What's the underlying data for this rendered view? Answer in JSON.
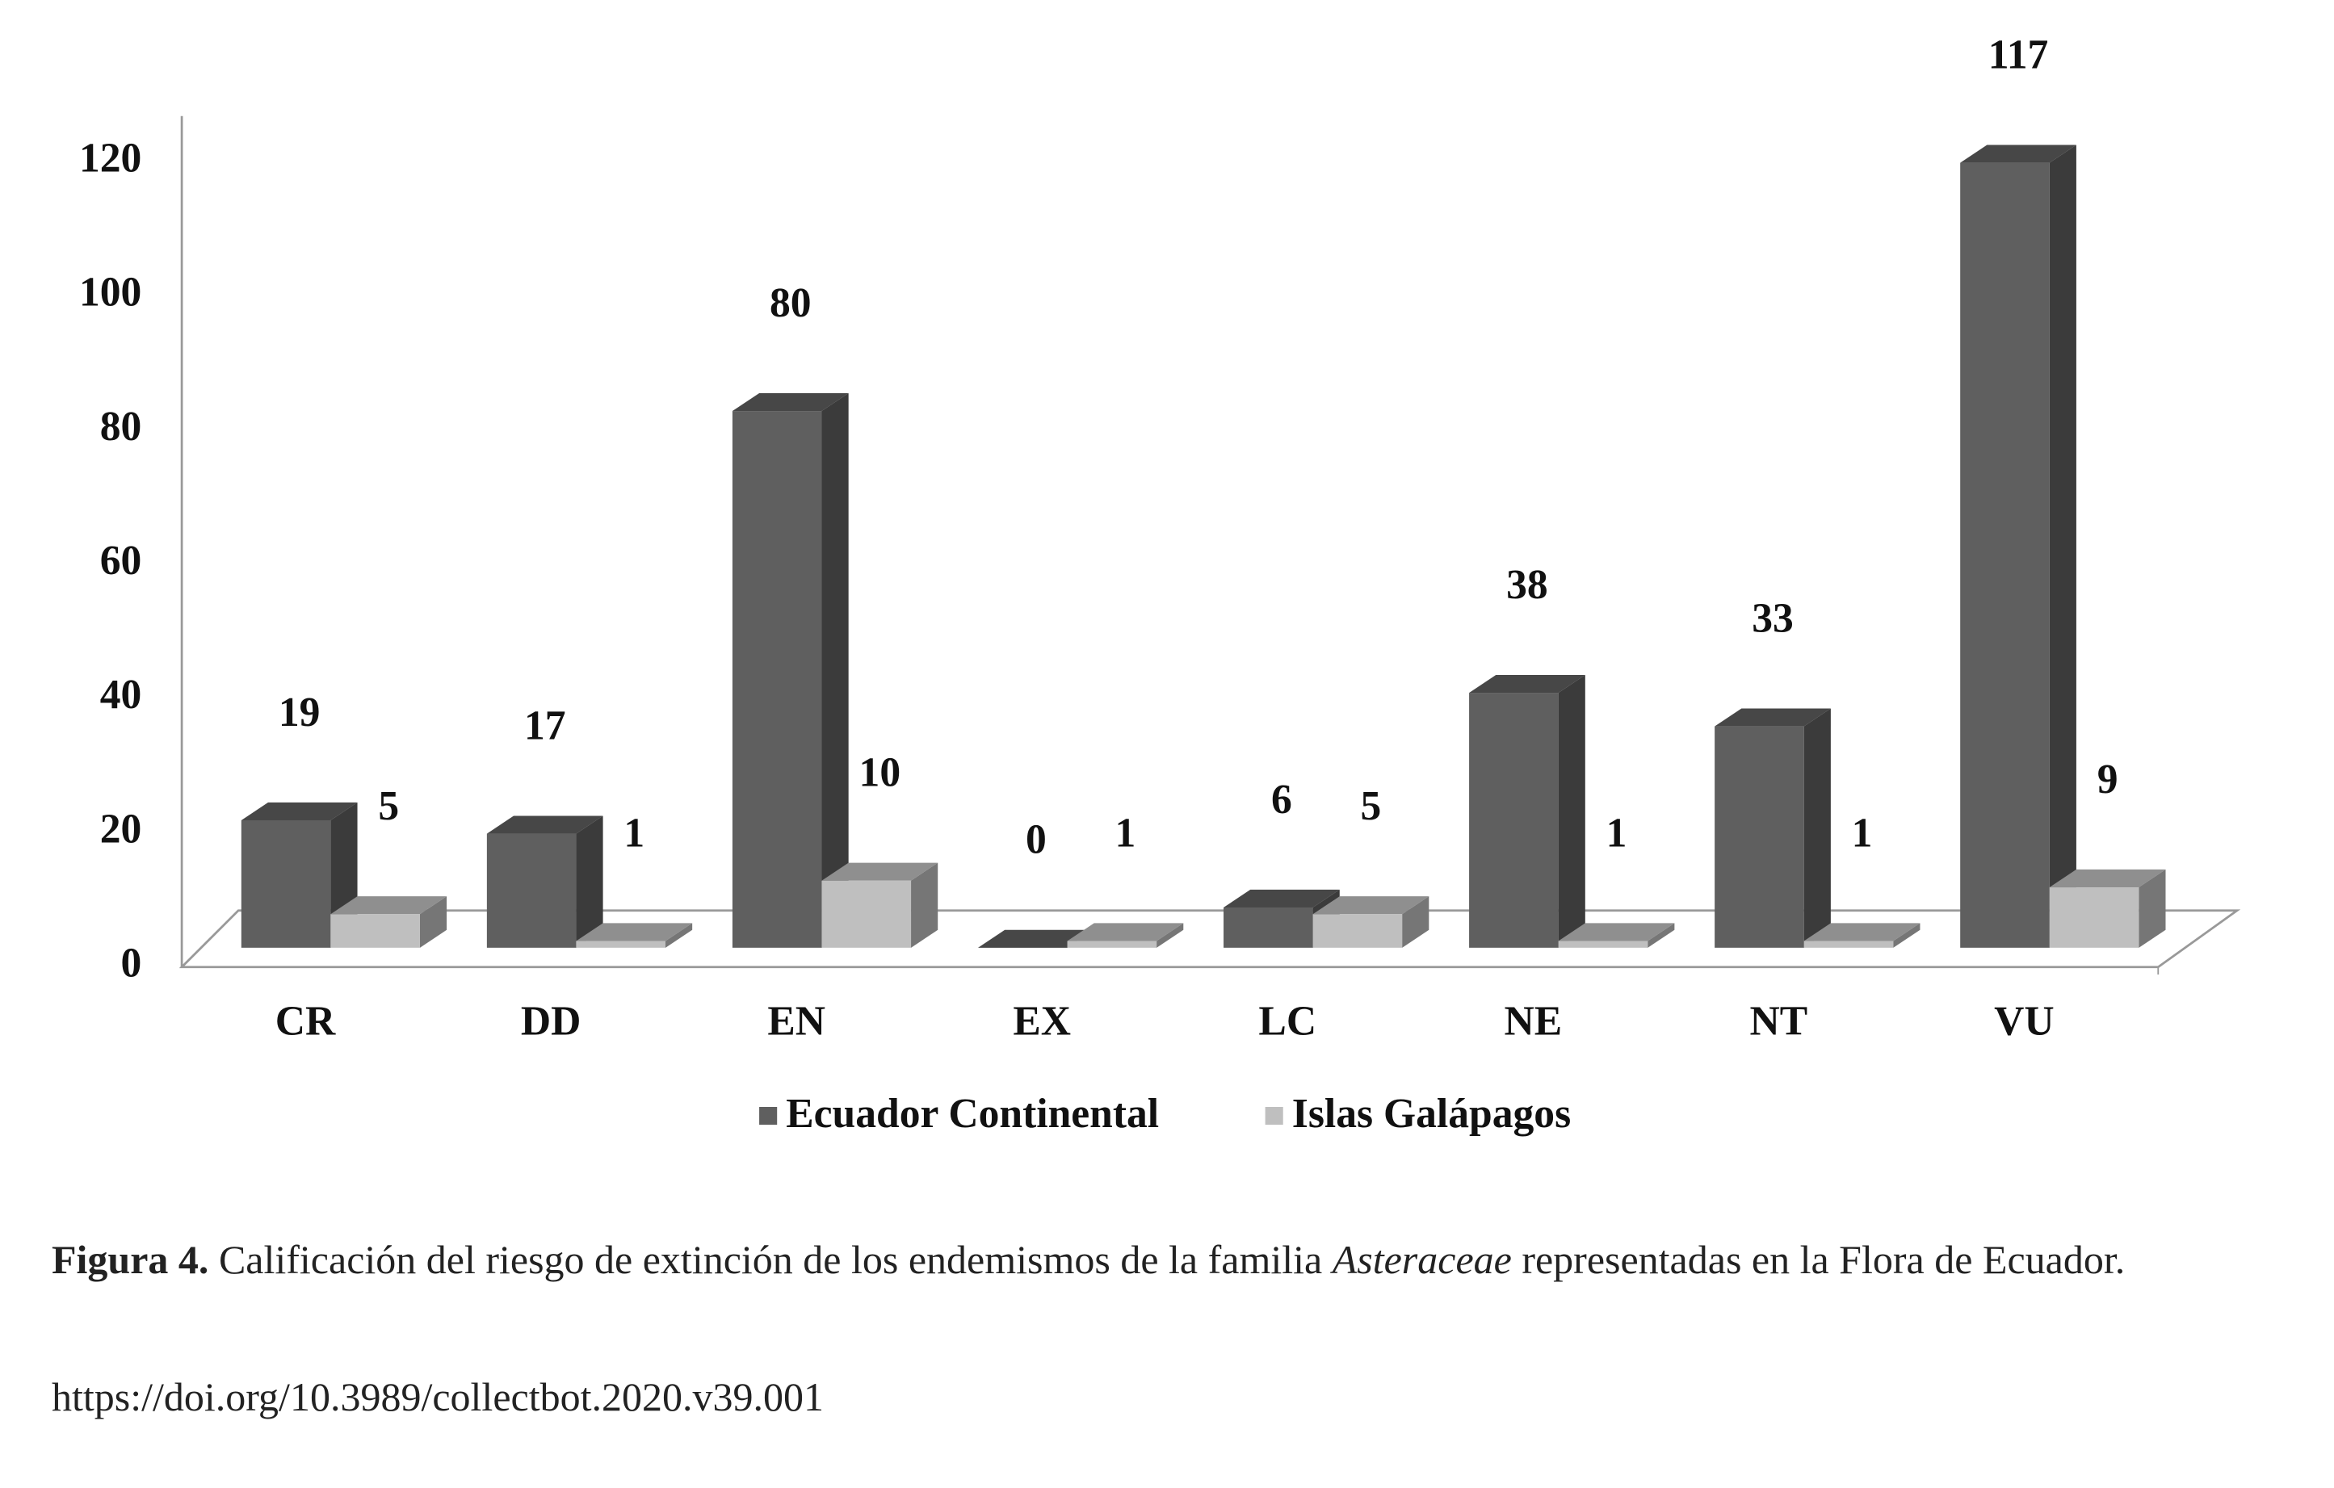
{
  "chart_data": {
    "type": "bar3d",
    "categories": [
      "CR",
      "DD",
      "EN",
      "EX",
      "LC",
      "NE",
      "NT",
      "VU"
    ],
    "series": [
      {
        "name": "Ecuador Continental",
        "color": "#5f5f5f",
        "values": [
          19,
          17,
          80,
          0,
          6,
          38,
          33,
          117
        ]
      },
      {
        "name": "Islas Galápagos",
        "color": "#bfbfbf",
        "values": [
          5,
          1,
          10,
          1,
          5,
          1,
          1,
          9
        ]
      }
    ],
    "ylim": [
      0,
      120
    ],
    "yticks": [
      0,
      20,
      40,
      60,
      80,
      100,
      120
    ],
    "grid": false,
    "legend": "bottom"
  },
  "caption": {
    "label": "Figura 4.",
    "text_before": "Calificación del riesgo de extinción de los endemismos de la familia",
    "italic": "Asteraceae",
    "text_after": "representadas en la Flora de Ecuador.",
    "doi": "https://doi.org/10.3989/collectbot.2020.v39.001"
  }
}
